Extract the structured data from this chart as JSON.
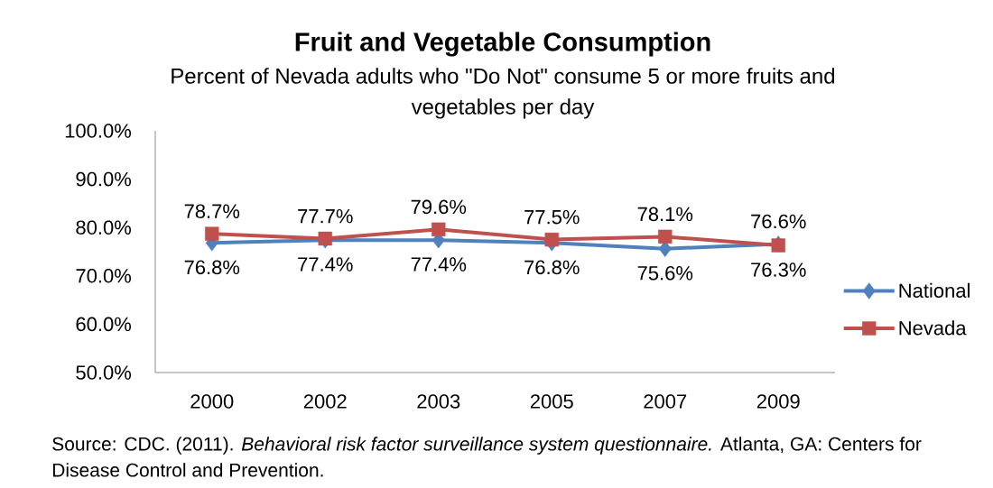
{
  "chart_data": {
    "type": "line",
    "title": "Fruit and Vegetable Consumption",
    "subtitle": "Percent of Nevada adults who \"Do Not\" consume 5 or more fruits and vegetables per day",
    "categories": [
      "2000",
      "2002",
      "2003",
      "2005",
      "2007",
      "2009"
    ],
    "series": [
      {
        "name": "National",
        "color": "#4f81bd",
        "marker": "diamond",
        "values": [
          76.8,
          77.4,
          77.4,
          76.8,
          75.6,
          76.6
        ],
        "value_labels": [
          "76.8%",
          "77.4%",
          "77.4%",
          "76.8%",
          "75.6%",
          "76.6%"
        ]
      },
      {
        "name": "Nevada",
        "color": "#c0504d",
        "marker": "square",
        "values": [
          78.7,
          77.7,
          79.6,
          77.5,
          78.1,
          76.3
        ],
        "value_labels": [
          "78.7%",
          "77.7%",
          "79.6%",
          "77.5%",
          "78.1%",
          "76.3%"
        ]
      }
    ],
    "ylim": [
      50,
      100
    ],
    "yticks": [
      {
        "value": 50,
        "label": "50.0%"
      },
      {
        "value": 60,
        "label": "60.0%"
      },
      {
        "value": 70,
        "label": "70.0%"
      },
      {
        "value": 80,
        "label": "80.0%"
      },
      {
        "value": 90,
        "label": "90.0%"
      },
      {
        "value": 100,
        "label": "100.0%"
      }
    ],
    "legend": "right",
    "line_style": "solid",
    "annotations": [
      "Source: CDC. (2011). *Behavioral risk factor surveillance system questionnaire.* Atlanta, GA: Centers for Disease Control and Prevention."
    ]
  }
}
